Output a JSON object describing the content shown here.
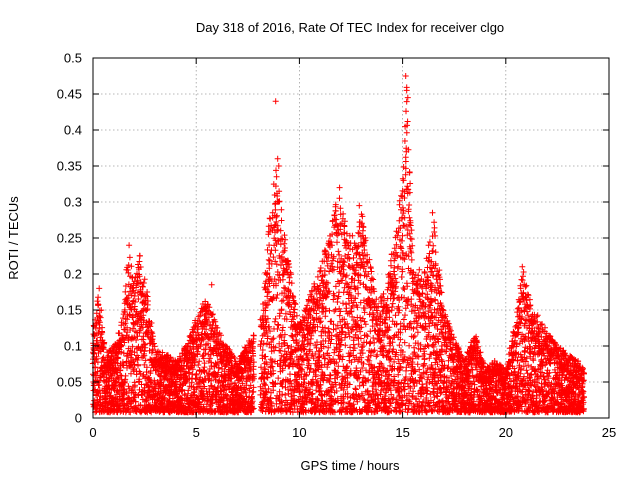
{
  "chart_data": {
    "type": "scatter",
    "title": "Day 318 of 2016, Rate Of TEC Index for receiver clgo",
    "xlabel": "GPS time / hours",
    "ylabel": "ROTI / TECUs",
    "xlim": [
      0,
      25
    ],
    "ylim": [
      0,
      0.5
    ],
    "xticks": [
      0,
      5,
      10,
      15,
      20,
      25
    ],
    "yticks": [
      0,
      0.05,
      0.1,
      0.15,
      0.2,
      0.25,
      0.3,
      0.35,
      0.4,
      0.45,
      0.5
    ],
    "xtick_labels": [
      "0",
      "5",
      "10",
      "15",
      "20",
      "25"
    ],
    "ytick_labels": [
      "0",
      "0.05",
      "0.1",
      "0.15",
      "0.2",
      "0.25",
      "0.3",
      "0.35",
      "0.4",
      "0.45",
      "0.5"
    ],
    "grid": true,
    "marker": "+",
    "marker_color": "#ff0000",
    "data_gaps_hours": [
      [
        7.8,
        8.1
      ]
    ],
    "series": [
      {
        "name": "ROTI",
        "envelope_note": "approximate upper envelope of the dense point cloud (hour, ROTI)",
        "envelope": [
          [
            0.0,
            0.12
          ],
          [
            0.3,
            0.18
          ],
          [
            0.6,
            0.09
          ],
          [
            1.0,
            0.1
          ],
          [
            1.5,
            0.15
          ],
          [
            1.7,
            0.24
          ],
          [
            2.0,
            0.19
          ],
          [
            2.3,
            0.23
          ],
          [
            2.6,
            0.18
          ],
          [
            3.0,
            0.1
          ],
          [
            3.5,
            0.09
          ],
          [
            4.0,
            0.08
          ],
          [
            4.5,
            0.1
          ],
          [
            5.0,
            0.14
          ],
          [
            5.5,
            0.17
          ],
          [
            6.0,
            0.13
          ],
          [
            6.5,
            0.1
          ],
          [
            7.0,
            0.08
          ],
          [
            7.6,
            0.11
          ],
          [
            8.2,
            0.15
          ],
          [
            8.6,
            0.3
          ],
          [
            8.9,
            0.36
          ],
          [
            9.2,
            0.27
          ],
          [
            9.6,
            0.2
          ],
          [
            10.0,
            0.13
          ],
          [
            10.5,
            0.17
          ],
          [
            11.0,
            0.21
          ],
          [
            11.5,
            0.26
          ],
          [
            11.9,
            0.32
          ],
          [
            12.3,
            0.26
          ],
          [
            12.7,
            0.25
          ],
          [
            13.0,
            0.29
          ],
          [
            13.4,
            0.22
          ],
          [
            13.8,
            0.16
          ],
          [
            14.2,
            0.18
          ],
          [
            14.6,
            0.25
          ],
          [
            15.0,
            0.33
          ],
          [
            15.2,
            0.47
          ],
          [
            15.5,
            0.22
          ],
          [
            16.0,
            0.2
          ],
          [
            16.5,
            0.28
          ],
          [
            17.0,
            0.15
          ],
          [
            17.5,
            0.11
          ],
          [
            18.0,
            0.08
          ],
          [
            18.5,
            0.12
          ],
          [
            19.0,
            0.07
          ],
          [
            19.5,
            0.08
          ],
          [
            20.0,
            0.07
          ],
          [
            20.5,
            0.14
          ],
          [
            20.8,
            0.21
          ],
          [
            21.2,
            0.16
          ],
          [
            21.6,
            0.14
          ],
          [
            22.0,
            0.12
          ],
          [
            22.5,
            0.1
          ],
          [
            23.0,
            0.09
          ],
          [
            23.5,
            0.08
          ],
          [
            23.8,
            0.07
          ]
        ],
        "outliers": [
          [
            8.85,
            0.44
          ],
          [
            15.15,
            0.475
          ],
          [
            15.2,
            0.455
          ],
          [
            15.25,
            0.445
          ],
          [
            15.05,
            0.33
          ],
          [
            11.95,
            0.32
          ],
          [
            8.95,
            0.36
          ],
          [
            9.0,
            0.35
          ],
          [
            12.9,
            0.295
          ],
          [
            16.45,
            0.285
          ],
          [
            0.3,
            0.18
          ],
          [
            5.75,
            0.185
          ],
          [
            4.55,
            0.1
          ],
          [
            20.8,
            0.21
          ],
          [
            13.05,
            0.28
          ],
          [
            1.75,
            0.24
          ]
        ]
      }
    ]
  }
}
